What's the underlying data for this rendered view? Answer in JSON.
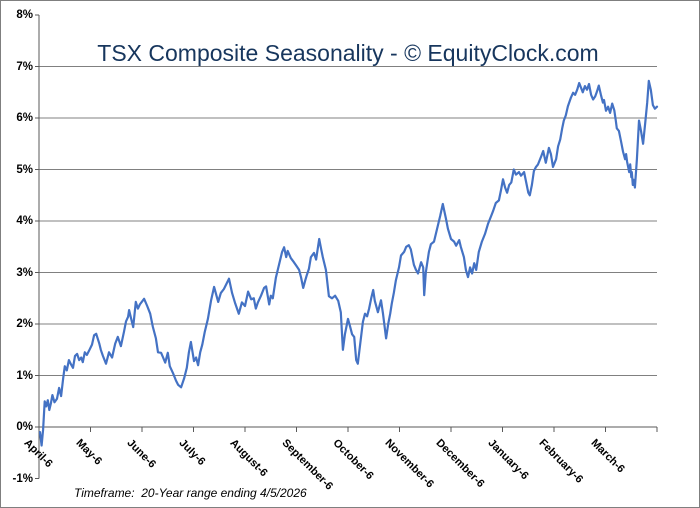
{
  "chart_data": {
    "type": "line",
    "title": "TSX Composite Seasonality - © EquityClock.com",
    "footer": "Timeframe:  20-Year range ending 4/5/2026",
    "x_categories": [
      "April-6",
      "May-6",
      "June-6",
      "July-6",
      "August-6",
      "September-6",
      "October-6",
      "November-6",
      "December-6",
      "January-6",
      "February-6",
      "March-6"
    ],
    "y_tick_labels": [
      "8%",
      "7%",
      "6%",
      "5%",
      "4%",
      "3%",
      "2%",
      "1%",
      "0%",
      "-1%"
    ],
    "ylim": [
      -1,
      8
    ],
    "y_gridline_values": [
      7,
      6,
      5,
      4,
      3,
      2,
      1
    ],
    "grid_on": true,
    "legend": "none",
    "line_color": "#4472c4",
    "grid_color": "#808080",
    "axis_color": "#595959",
    "title_color": "#17365d",
    "x_unit": "months from April 1 (0-12)",
    "y_unit": "percent",
    "points": [
      [
        0.02,
        -0.1
      ],
      [
        0.05,
        -0.36
      ],
      [
        0.08,
        -0.05
      ],
      [
        0.11,
        0.5
      ],
      [
        0.14,
        0.4
      ],
      [
        0.17,
        0.52
      ],
      [
        0.2,
        0.33
      ],
      [
        0.23,
        0.45
      ],
      [
        0.26,
        0.62
      ],
      [
        0.3,
        0.48
      ],
      [
        0.35,
        0.55
      ],
      [
        0.39,
        0.76
      ],
      [
        0.43,
        0.6
      ],
      [
        0.47,
        0.95
      ],
      [
        0.5,
        1.18
      ],
      [
        0.54,
        1.1
      ],
      [
        0.58,
        1.3
      ],
      [
        0.62,
        1.22
      ],
      [
        0.66,
        1.15
      ],
      [
        0.7,
        1.38
      ],
      [
        0.74,
        1.42
      ],
      [
        0.78,
        1.3
      ],
      [
        0.82,
        1.35
      ],
      [
        0.85,
        1.26
      ],
      [
        0.89,
        1.45
      ],
      [
        0.93,
        1.4
      ],
      [
        0.97,
        1.48
      ],
      [
        1.03,
        1.6
      ],
      [
        1.07,
        1.78
      ],
      [
        1.11,
        1.81
      ],
      [
        1.17,
        1.62
      ],
      [
        1.2,
        1.5
      ],
      [
        1.24,
        1.38
      ],
      [
        1.3,
        1.23
      ],
      [
        1.36,
        1.45
      ],
      [
        1.42,
        1.35
      ],
      [
        1.48,
        1.62
      ],
      [
        1.53,
        1.75
      ],
      [
        1.59,
        1.57
      ],
      [
        1.65,
        1.85
      ],
      [
        1.69,
        2.05
      ],
      [
        1.73,
        2.14
      ],
      [
        1.75,
        2.27
      ],
      [
        1.79,
        2.1
      ],
      [
        1.83,
        1.94
      ],
      [
        1.88,
        2.43
      ],
      [
        1.92,
        2.3
      ],
      [
        1.96,
        2.38
      ],
      [
        2.04,
        2.49
      ],
      [
        2.1,
        2.35
      ],
      [
        2.16,
        2.2
      ],
      [
        2.21,
        1.95
      ],
      [
        2.27,
        1.72
      ],
      [
        2.31,
        1.45
      ],
      [
        2.37,
        1.44
      ],
      [
        2.41,
        1.35
      ],
      [
        2.45,
        1.25
      ],
      [
        2.5,
        1.44
      ],
      [
        2.54,
        1.18
      ],
      [
        2.6,
        1.05
      ],
      [
        2.66,
        0.9
      ],
      [
        2.7,
        0.82
      ],
      [
        2.76,
        0.77
      ],
      [
        2.82,
        0.95
      ],
      [
        2.87,
        1.15
      ],
      [
        2.91,
        1.45
      ],
      [
        2.95,
        1.65
      ],
      [
        3.01,
        1.28
      ],
      [
        3.05,
        1.35
      ],
      [
        3.09,
        1.2
      ],
      [
        3.13,
        1.45
      ],
      [
        3.17,
        1.6
      ],
      [
        3.22,
        1.85
      ],
      [
        3.28,
        2.1
      ],
      [
        3.34,
        2.45
      ],
      [
        3.4,
        2.72
      ],
      [
        3.48,
        2.43
      ],
      [
        3.53,
        2.6
      ],
      [
        3.59,
        2.68
      ],
      [
        3.65,
        2.8
      ],
      [
        3.69,
        2.88
      ],
      [
        3.75,
        2.6
      ],
      [
        3.81,
        2.4
      ],
      [
        3.88,
        2.2
      ],
      [
        3.94,
        2.42
      ],
      [
        4.0,
        2.35
      ],
      [
        4.06,
        2.63
      ],
      [
        4.12,
        2.48
      ],
      [
        4.17,
        2.5
      ],
      [
        4.21,
        2.3
      ],
      [
        4.25,
        2.42
      ],
      [
        4.31,
        2.55
      ],
      [
        4.37,
        2.7
      ],
      [
        4.41,
        2.73
      ],
      [
        4.47,
        2.38
      ],
      [
        4.5,
        2.55
      ],
      [
        4.54,
        2.5
      ],
      [
        4.6,
        2.9
      ],
      [
        4.66,
        3.15
      ],
      [
        4.72,
        3.4
      ],
      [
        4.76,
        3.49
      ],
      [
        4.8,
        3.3
      ],
      [
        4.83,
        3.42
      ],
      [
        4.89,
        3.28
      ],
      [
        4.95,
        3.2
      ],
      [
        4.99,
        3.14
      ],
      [
        5.05,
        3.05
      ],
      [
        5.09,
        2.9
      ],
      [
        5.13,
        2.7
      ],
      [
        5.17,
        2.85
      ],
      [
        5.2,
        2.95
      ],
      [
        5.24,
        3.07
      ],
      [
        5.28,
        3.3
      ],
      [
        5.34,
        3.38
      ],
      [
        5.38,
        3.25
      ],
      [
        5.44,
        3.65
      ],
      [
        5.48,
        3.45
      ],
      [
        5.51,
        3.3
      ],
      [
        5.57,
        3.05
      ],
      [
        5.63,
        2.54
      ],
      [
        5.69,
        2.5
      ],
      [
        5.75,
        2.55
      ],
      [
        5.81,
        2.45
      ],
      [
        5.86,
        2.23
      ],
      [
        5.9,
        1.5
      ],
      [
        5.94,
        1.8
      ],
      [
        6.0,
        2.1
      ],
      [
        6.04,
        1.95
      ],
      [
        6.08,
        1.8
      ],
      [
        6.12,
        1.75
      ],
      [
        6.16,
        1.3
      ],
      [
        6.19,
        1.23
      ],
      [
        6.23,
        1.55
      ],
      [
        6.29,
        2.04
      ],
      [
        6.33,
        2.2
      ],
      [
        6.37,
        2.15
      ],
      [
        6.41,
        2.3
      ],
      [
        6.45,
        2.5
      ],
      [
        6.49,
        2.66
      ],
      [
        6.52,
        2.45
      ],
      [
        6.58,
        2.23
      ],
      [
        6.64,
        2.46
      ],
      [
        6.68,
        2.2
      ],
      [
        6.74,
        1.72
      ],
      [
        6.78,
        2.0
      ],
      [
        6.82,
        2.2
      ],
      [
        6.85,
        2.4
      ],
      [
        6.89,
        2.6
      ],
      [
        6.93,
        2.85
      ],
      [
        6.99,
        3.1
      ],
      [
        7.03,
        3.33
      ],
      [
        7.09,
        3.4
      ],
      [
        7.13,
        3.5
      ],
      [
        7.18,
        3.53
      ],
      [
        7.22,
        3.45
      ],
      [
        7.28,
        3.15
      ],
      [
        7.32,
        3.05
      ],
      [
        7.36,
        2.98
      ],
      [
        7.42,
        3.2
      ],
      [
        7.46,
        3.1
      ],
      [
        7.48,
        2.56
      ],
      [
        7.51,
        3.0
      ],
      [
        7.57,
        3.4
      ],
      [
        7.61,
        3.55
      ],
      [
        7.67,
        3.6
      ],
      [
        7.73,
        3.85
      ],
      [
        7.79,
        4.1
      ],
      [
        7.84,
        4.33
      ],
      [
        7.9,
        4.05
      ],
      [
        7.94,
        3.85
      ],
      [
        8.0,
        3.65
      ],
      [
        8.06,
        3.6
      ],
      [
        8.1,
        3.52
      ],
      [
        8.16,
        3.63
      ],
      [
        8.19,
        3.5
      ],
      [
        8.25,
        3.3
      ],
      [
        8.29,
        3.05
      ],
      [
        8.33,
        2.91
      ],
      [
        8.37,
        3.1
      ],
      [
        8.41,
        2.98
      ],
      [
        8.45,
        3.18
      ],
      [
        8.49,
        3.05
      ],
      [
        8.54,
        3.4
      ],
      [
        8.6,
        3.6
      ],
      [
        8.66,
        3.75
      ],
      [
        8.72,
        3.95
      ],
      [
        8.78,
        4.1
      ],
      [
        8.82,
        4.2
      ],
      [
        8.87,
        4.35
      ],
      [
        8.93,
        4.4
      ],
      [
        8.97,
        4.6
      ],
      [
        9.01,
        4.81
      ],
      [
        9.05,
        4.65
      ],
      [
        9.09,
        4.55
      ],
      [
        9.13,
        4.7
      ],
      [
        9.17,
        4.75
      ],
      [
        9.22,
        5.0
      ],
      [
        9.26,
        4.9
      ],
      [
        9.32,
        4.95
      ],
      [
        9.36,
        4.88
      ],
      [
        9.42,
        4.95
      ],
      [
        9.46,
        4.75
      ],
      [
        9.5,
        4.55
      ],
      [
        9.53,
        4.5
      ],
      [
        9.57,
        4.7
      ],
      [
        9.61,
        4.97
      ],
      [
        9.65,
        5.05
      ],
      [
        9.69,
        5.1
      ],
      [
        9.75,
        5.25
      ],
      [
        9.79,
        5.36
      ],
      [
        9.84,
        5.13
      ],
      [
        9.9,
        5.42
      ],
      [
        9.94,
        5.3
      ],
      [
        9.98,
        5.05
      ],
      [
        10.04,
        5.2
      ],
      [
        10.08,
        5.45
      ],
      [
        10.12,
        5.58
      ],
      [
        10.16,
        5.8
      ],
      [
        10.19,
        5.95
      ],
      [
        10.23,
        6.05
      ],
      [
        10.27,
        6.23
      ],
      [
        10.33,
        6.4
      ],
      [
        10.37,
        6.49
      ],
      [
        10.41,
        6.45
      ],
      [
        10.45,
        6.55
      ],
      [
        10.49,
        6.68
      ],
      [
        10.52,
        6.6
      ],
      [
        10.56,
        6.5
      ],
      [
        10.6,
        6.62
      ],
      [
        10.64,
        6.55
      ],
      [
        10.68,
        6.66
      ],
      [
        10.72,
        6.45
      ],
      [
        10.76,
        6.36
      ],
      [
        10.8,
        6.42
      ],
      [
        10.83,
        6.5
      ],
      [
        10.87,
        6.63
      ],
      [
        10.91,
        6.45
      ],
      [
        10.95,
        6.3
      ],
      [
        10.97,
        6.35
      ],
      [
        11.01,
        6.14
      ],
      [
        11.05,
        6.22
      ],
      [
        11.09,
        6.1
      ],
      [
        11.13,
        6.28
      ],
      [
        11.17,
        6.15
      ],
      [
        11.2,
        5.95
      ],
      [
        11.22,
        5.8
      ],
      [
        11.26,
        5.75
      ],
      [
        11.3,
        5.55
      ],
      [
        11.34,
        5.35
      ],
      [
        11.38,
        5.2
      ],
      [
        11.4,
        5.3
      ],
      [
        11.42,
        5.15
      ],
      [
        11.46,
        4.95
      ],
      [
        11.48,
        5.1
      ],
      [
        11.5,
        4.85
      ],
      [
        11.51,
        4.95
      ],
      [
        11.53,
        4.7
      ],
      [
        11.55,
        4.8
      ],
      [
        11.57,
        4.65
      ],
      [
        11.61,
        5.2
      ],
      [
        11.65,
        5.95
      ],
      [
        11.69,
        5.75
      ],
      [
        11.73,
        5.5
      ],
      [
        11.77,
        5.9
      ],
      [
        11.81,
        6.3
      ],
      [
        11.84,
        6.72
      ],
      [
        11.88,
        6.55
      ],
      [
        11.92,
        6.25
      ],
      [
        11.96,
        6.18
      ],
      [
        12.0,
        6.22
      ]
    ]
  }
}
